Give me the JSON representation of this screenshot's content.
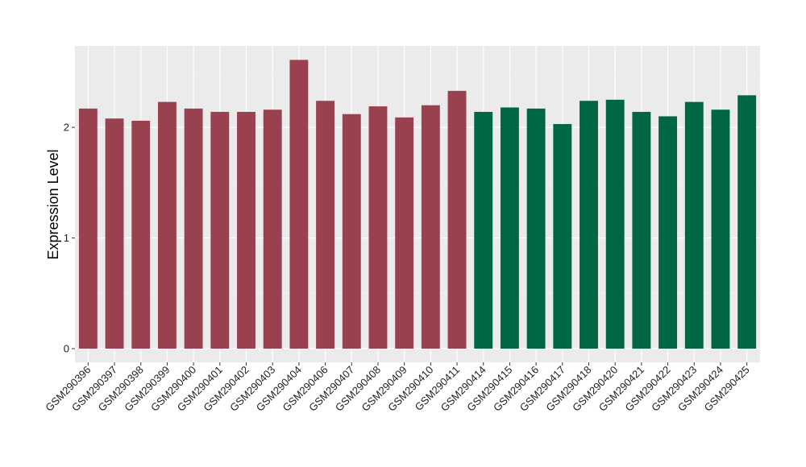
{
  "chart_data": {
    "type": "bar",
    "title": "",
    "xlabel": "",
    "ylabel": "Expression Level",
    "ylim": [
      -0.12,
      2.75
    ],
    "yticks": [
      0,
      1,
      2
    ],
    "grid": true,
    "legend": "none",
    "categories": [
      "GSM290396",
      "GSM290397",
      "GSM290398",
      "GSM290399",
      "GSM290400",
      "GSM290401",
      "GSM290402",
      "GSM290403",
      "GSM290404",
      "GSM290406",
      "GSM290407",
      "GSM290408",
      "GSM290409",
      "GSM290410",
      "GSM290411",
      "GSM290414",
      "GSM290415",
      "GSM290416",
      "GSM290417",
      "GSM290418",
      "GSM290420",
      "GSM290421",
      "GSM290422",
      "GSM290423",
      "GSM290424",
      "GSM290425"
    ],
    "values": [
      2.17,
      2.08,
      2.06,
      2.23,
      2.17,
      2.14,
      2.14,
      2.16,
      2.61,
      2.24,
      2.12,
      2.19,
      2.09,
      2.2,
      2.33,
      2.14,
      2.18,
      2.17,
      2.03,
      2.24,
      2.25,
      2.14,
      2.1,
      2.23,
      2.16,
      2.29
    ],
    "groups": [
      "a",
      "a",
      "a",
      "a",
      "a",
      "a",
      "a",
      "a",
      "a",
      "a",
      "a",
      "a",
      "a",
      "a",
      "a",
      "b",
      "b",
      "b",
      "b",
      "b",
      "b",
      "b",
      "b",
      "b",
      "b",
      "b"
    ],
    "group_colors": {
      "a": "#99414f",
      "b": "#006645"
    }
  }
}
